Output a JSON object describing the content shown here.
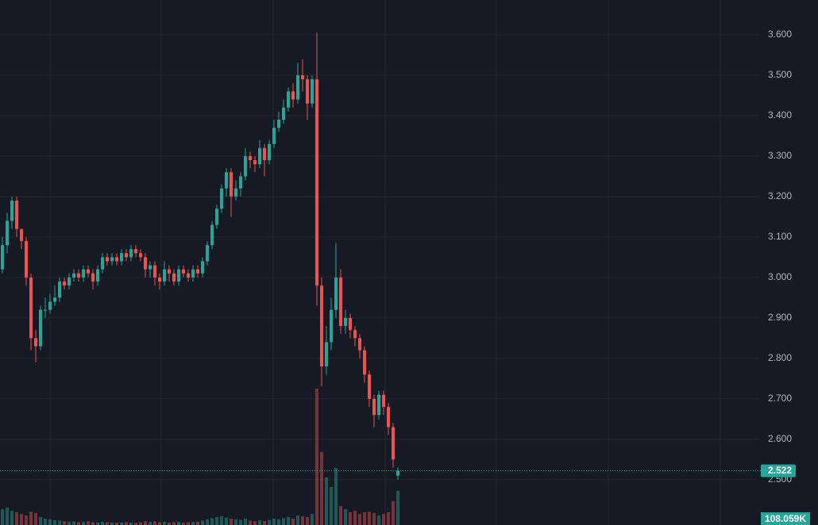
{
  "chart_data": {
    "type": "candlestick",
    "up_color": "#26a69a",
    "down_color": "#ef5350",
    "ylim": [
      2.388,
      3.686
    ],
    "yticks": [
      {
        "value": 2.5,
        "label": "2.500"
      },
      {
        "value": 2.6,
        "label": "2.600"
      },
      {
        "value": 2.7,
        "label": "2.700"
      },
      {
        "value": 2.8,
        "label": "2.800"
      },
      {
        "value": 2.9,
        "label": "2.900"
      },
      {
        "value": 3.0,
        "label": "3.000"
      },
      {
        "value": 3.1,
        "label": "3.100"
      },
      {
        "value": 3.2,
        "label": "3.200"
      },
      {
        "value": 3.3,
        "label": "3.300"
      },
      {
        "value": 3.4,
        "label": "3.400"
      },
      {
        "value": 3.5,
        "label": "3.500"
      },
      {
        "value": 3.6,
        "label": "3.600"
      }
    ],
    "grid": true,
    "open": [
      3.02,
      3.08,
      3.14,
      3.19,
      3.12,
      3.09,
      3.0,
      2.85,
      2.83,
      2.92,
      2.92,
      2.94,
      2.95,
      2.99,
      2.98,
      3.0,
      3.01,
      3.0,
      3.02,
      3.01,
      2.99,
      3.02,
      3.05,
      3.04,
      3.05,
      3.04,
      3.06,
      3.05,
      3.07,
      3.06,
      3.05,
      3.02,
      3.03,
      3.0,
      2.99,
      3.02,
      3.01,
      2.99,
      3.02,
      3.01,
      3.0,
      3.02,
      3.01,
      3.04,
      3.08,
      3.13,
      3.17,
      3.22,
      3.26,
      3.2,
      3.22,
      3.25,
      3.3,
      3.29,
      3.28,
      3.32,
      3.29,
      3.33,
      3.37,
      3.39,
      3.42,
      3.46,
      3.44,
      3.5,
      3.49,
      3.43,
      3.49,
      2.98,
      2.78,
      2.84,
      2.92,
      3.0,
      2.88,
      2.9,
      2.87,
      2.85,
      2.82,
      2.76,
      2.7,
      2.66,
      2.71,
      2.68,
      2.63,
      2.51
    ],
    "high": [
      3.1,
      3.16,
      3.2,
      3.2,
      3.11,
      3.1,
      3.01,
      2.87,
      2.93,
      2.95,
      2.96,
      2.98,
      3.0,
      3.0,
      3.01,
      3.02,
      3.02,
      3.03,
      3.03,
      3.02,
      3.03,
      3.06,
      3.06,
      3.06,
      3.06,
      3.07,
      3.07,
      3.08,
      3.08,
      3.07,
      3.06,
      3.04,
      3.04,
      3.01,
      3.04,
      3.03,
      3.02,
      3.03,
      3.03,
      3.02,
      3.03,
      3.03,
      3.05,
      3.09,
      3.14,
      3.18,
      3.23,
      3.27,
      3.27,
      3.24,
      3.26,
      3.32,
      3.31,
      3.3,
      3.34,
      3.33,
      3.34,
      3.39,
      3.41,
      3.44,
      3.47,
      3.48,
      3.53,
      3.54,
      3.5,
      3.5,
      3.605,
      3.0,
      2.88,
      2.95,
      3.085,
      3.02,
      2.92,
      2.91,
      2.88,
      2.86,
      2.83,
      2.77,
      2.71,
      2.72,
      2.72,
      2.69,
      2.64,
      2.53
    ],
    "low": [
      3.01,
      3.06,
      3.12,
      3.1,
      3.07,
      2.98,
      2.82,
      2.79,
      2.82,
      2.9,
      2.91,
      2.93,
      2.94,
      2.97,
      2.97,
      2.99,
      2.99,
      2.99,
      3.0,
      2.97,
      2.98,
      3.01,
      3.03,
      3.03,
      3.03,
      3.03,
      3.04,
      3.04,
      3.05,
      3.04,
      3.0,
      3.0,
      2.98,
      2.97,
      2.98,
      2.99,
      2.98,
      2.98,
      3.0,
      2.99,
      2.99,
      3.0,
      3.0,
      3.03,
      3.07,
      3.12,
      3.16,
      3.2,
      3.15,
      3.19,
      3.2,
      3.24,
      3.27,
      3.26,
      3.27,
      3.25,
      3.28,
      3.32,
      3.36,
      3.38,
      3.41,
      3.42,
      3.43,
      3.46,
      3.39,
      3.42,
      2.93,
      2.73,
      2.76,
      2.82,
      2.9,
      2.86,
      2.86,
      2.85,
      2.83,
      2.8,
      2.74,
      2.68,
      2.63,
      2.65,
      2.66,
      2.61,
      2.53,
      2.5
    ],
    "close": [
      3.08,
      3.14,
      3.19,
      3.12,
      3.09,
      3.0,
      2.85,
      2.83,
      2.92,
      2.92,
      2.94,
      2.95,
      2.99,
      2.98,
      3.0,
      3.01,
      3.0,
      3.02,
      3.01,
      2.99,
      3.02,
      3.05,
      3.04,
      3.05,
      3.04,
      3.06,
      3.05,
      3.07,
      3.06,
      3.05,
      3.02,
      3.03,
      3.0,
      2.99,
      3.02,
      3.01,
      2.99,
      3.02,
      3.01,
      3.0,
      3.02,
      3.01,
      3.04,
      3.08,
      3.13,
      3.17,
      3.22,
      3.26,
      3.2,
      3.22,
      3.25,
      3.3,
      3.29,
      3.28,
      3.32,
      3.29,
      3.33,
      3.37,
      3.39,
      3.42,
      3.46,
      3.44,
      3.5,
      3.49,
      3.43,
      3.49,
      2.98,
      2.78,
      2.84,
      2.92,
      3.0,
      2.88,
      2.9,
      2.87,
      2.85,
      2.82,
      2.76,
      2.7,
      2.66,
      2.71,
      2.68,
      2.63,
      2.55,
      2.522
    ],
    "volume": [
      50000,
      55000,
      45000,
      40000,
      35000,
      30000,
      42000,
      38000,
      25000,
      20000,
      18000,
      15000,
      14000,
      12000,
      10000,
      11000,
      9000,
      10000,
      12000,
      9000,
      8000,
      10000,
      9000,
      8000,
      7000,
      8000,
      9000,
      8000,
      7000,
      9000,
      12000,
      10000,
      11000,
      9000,
      10000,
      8000,
      9000,
      10000,
      8000,
      9000,
      10000,
      11000,
      14000,
      18000,
      22000,
      25000,
      28000,
      24000,
      20000,
      18000,
      16000,
      20000,
      14000,
      12000,
      15000,
      13000,
      16000,
      20000,
      18000,
      22000,
      25000,
      20000,
      30000,
      28000,
      25000,
      35000,
      430000,
      230000,
      150000,
      120000,
      180000,
      60000,
      50000,
      40000,
      45000,
      35000,
      40000,
      42000,
      38000,
      30000,
      35000,
      40000,
      75000,
      108059
    ],
    "y2lim": [
      0,
      450000
    ],
    "volume_label": "108.059K"
  }
}
